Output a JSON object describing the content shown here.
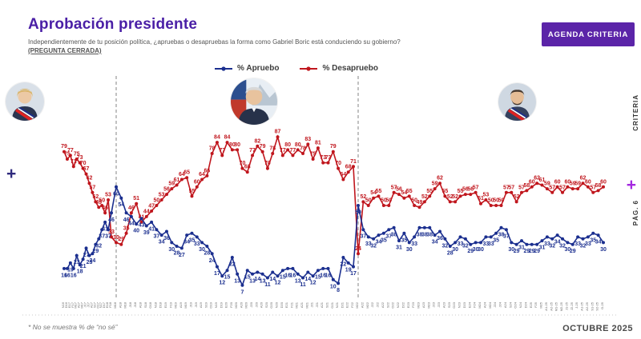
{
  "header": {
    "title": "Aprobación presidente",
    "subtitle_line1": "Independientemente de tu posición política, ¿apruebas o desapruebas la forma como Gabriel Boric está conduciendo su gobierno?",
    "subtitle_line2": "(PREGUNTA CERRADA)",
    "brand_button": "AGENDA CRITERIA"
  },
  "legend": {
    "apruebo_label": "% Apruebo",
    "desapruebo_label": "% Desapruebo"
  },
  "decorations": {
    "left_plus": "+",
    "right_plus": "+",
    "right_brand": "CRITERIA",
    "right_page": "PÁG. 6"
  },
  "footer": {
    "note": "* No se muestra % de “no sé”",
    "date": "OCTUBRE 2025"
  },
  "colors": {
    "apruebo": "#1b2f8f",
    "desapruebo": "#c0161d",
    "title_purple": "#4a1fa6",
    "button_purple": "#5b24a8",
    "plus_magenta": "#a428e0",
    "plus_navy": "#2f2a7d"
  },
  "presidents": [
    "bachelet",
    "pinera",
    "boric"
  ],
  "chart_data": {
    "type": "line",
    "title": "Aprobación presidente",
    "ylim": [
      0,
      100
    ],
    "grid": false,
    "legend_position": "top-center",
    "point_labels": true,
    "series": [
      {
        "name": "% Apruebo",
        "color": "#1b2f8f"
      },
      {
        "name": "% Desapruebo",
        "color": "#c0161d"
      }
    ],
    "segments": [
      {
        "president": "bachelet",
        "labels": [
          "N16",
          "D16",
          "E17",
          "F17",
          "M17",
          "A17",
          "M17",
          "J17",
          "J17",
          "A17",
          "S17",
          "O17",
          "N17",
          "D17",
          "E18",
          "F18"
        ],
        "apruebo": [
          16,
          16,
          19,
          16,
          23,
          18,
          21,
          27,
          23,
          24,
          29,
          32,
          37,
          41,
          37,
          46
        ],
        "desapruebo": [
          79,
          75,
          77,
          71,
          75,
          73,
          70,
          67,
          62,
          57,
          52,
          49,
          50,
          46,
          53,
          33
        ]
      },
      {
        "president": "pinera",
        "labels": [
          "M18",
          "A18",
          "M18",
          "J18",
          "J18",
          "A18",
          "S18",
          "O18",
          "N18",
          "D18",
          "E19",
          "F19",
          "M19",
          "A19",
          "M19",
          "J19",
          "J19",
          "A19",
          "S19",
          "O19",
          "N19",
          "D19",
          "E20",
          "F20",
          "M20",
          "A20",
          "M20",
          "J20",
          "J20",
          "A20",
          "S20",
          "O20",
          "N20",
          "D20",
          "E21",
          "F21",
          "M21",
          "A21",
          "M21",
          "J21",
          "J21",
          "A21",
          "S21",
          "O21",
          "N21",
          "D21",
          "E22",
          "F22"
        ],
        "apruebo": [
          60,
          54,
          46,
          44,
          40,
          43,
          39,
          41,
          37,
          34,
          36,
          30,
          28,
          27,
          34,
          35,
          33,
          30,
          28,
          24,
          17,
          12,
          15,
          22,
          13,
          7,
          15,
          13,
          14,
          13,
          11,
          14,
          12,
          15,
          16,
          16,
          13,
          11,
          14,
          12,
          15,
          16,
          16,
          10,
          8,
          22,
          19,
          17
        ],
        "desapruebo": [
          30,
          29,
          35,
          46,
          51,
          41,
          44,
          47,
          50,
          53,
          56,
          59,
          61,
          64,
          65,
          55,
          60,
          64,
          66,
          78,
          84,
          77,
          84,
          80,
          80,
          70,
          68,
          77,
          82,
          79,
          70,
          78,
          87,
          77,
          80,
          77,
          80,
          78,
          83,
          75,
          81,
          73,
          73,
          79,
          70,
          64,
          68,
          71
        ]
      },
      {
        "president": "boric",
        "labels": [
          "M22",
          "A22",
          "M22",
          "J22",
          "J22",
          "A22",
          "S22",
          "O22",
          "N22",
          "D22",
          "E23",
          "F23",
          "M23",
          "A23",
          "M23",
          "J23",
          "J23",
          "A23",
          "S23",
          "O23",
          "N23",
          "D23",
          "E24",
          "F24",
          "M24",
          "A24",
          "M24",
          "J24",
          "J24",
          "A24",
          "S24",
          "O24",
          "N24",
          "D24",
          "E25",
          "F25",
          "M25",
          "A1-25",
          "A2-25",
          "M1-25",
          "M2-25",
          "J1-25",
          "J2-25",
          "J-25",
          "A1-25",
          "A2-25",
          "S1-25",
          "S2-25",
          "O-25"
        ],
        "apruebo": [
          50,
          37,
          33,
          32,
          34,
          35,
          37,
          38,
          31,
          35,
          30,
          33,
          38,
          38,
          38,
          34,
          36,
          32,
          28,
          30,
          33,
          32,
          29,
          30,
          30,
          33,
          33,
          35,
          38,
          37,
          30,
          29,
          31,
          29,
          29,
          29,
          31,
          33,
          32,
          34,
          32,
          30,
          29,
          33,
          32,
          33,
          35,
          34,
          30
        ],
        "desapruebo": [
          24,
          52,
          50,
          54,
          55,
          50,
          50,
          57,
          56,
          54,
          55,
          50,
          49,
          52,
          55,
          59,
          62,
          55,
          52,
          52,
          55,
          56,
          56,
          57,
          51,
          53,
          50,
          50,
          50,
          57,
          57,
          52,
          57,
          58,
          60,
          62,
          61,
          59,
          57,
          60,
          57,
          60,
          59,
          59,
          62,
          60,
          57,
          58,
          60
        ]
      }
    ]
  }
}
